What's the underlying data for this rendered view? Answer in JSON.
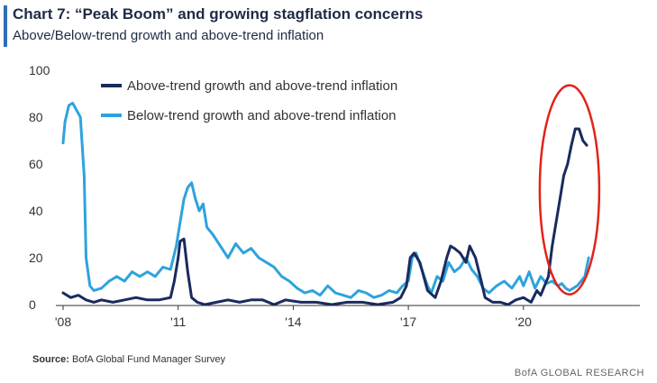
{
  "title": "Chart 7: “Peak Boom” and growing stagflation concerns",
  "subtitle": "Above/Below-trend growth and above-trend inflation",
  "source_label": "Source:",
  "source_text": "BofA Global Fund Manager Survey",
  "footer": "BofA GLOBAL RESEARCH",
  "colors": {
    "title_bar": "#2f6db5",
    "above": "#1a2a5e",
    "below": "#2ea3dc",
    "highlight": "#e2231a",
    "axis": "#333333"
  },
  "chart_data": {
    "type": "line",
    "title": "Chart 7: “Peak Boom” and growing stagflation concerns",
    "subtitle": "Above/Below-trend growth and above-trend inflation",
    "ylim": [
      0,
      100
    ],
    "yticks": [
      "0",
      "20",
      "40",
      "60",
      "80",
      "100"
    ],
    "xlim": [
      2008,
      2022.8
    ],
    "xticks": [
      {
        "x": 2008,
        "label": "'08"
      },
      {
        "x": 2011,
        "label": "'11"
      },
      {
        "x": 2014,
        "label": "'14"
      },
      {
        "x": 2017,
        "label": "'17"
      },
      {
        "x": 2020,
        "label": "'20"
      }
    ],
    "legend": "top-left",
    "series": [
      {
        "name": "Above-trend growth and above-trend inflation",
        "color": "#1a2a5e",
        "x": [
          2008.0,
          2008.2,
          2008.4,
          2008.6,
          2008.8,
          2009.0,
          2009.3,
          2009.6,
          2009.9,
          2010.2,
          2010.5,
          2010.8,
          2010.9,
          2011.0,
          2011.05,
          2011.15,
          2011.25,
          2011.35,
          2011.5,
          2011.7,
          2012.0,
          2012.3,
          2012.6,
          2012.9,
          2013.2,
          2013.5,
          2013.8,
          2014.2,
          2014.6,
          2015.0,
          2015.4,
          2015.8,
          2016.2,
          2016.6,
          2016.8,
          2016.95,
          2017.05,
          2017.15,
          2017.3,
          2017.5,
          2017.7,
          2017.85,
          2018.0,
          2018.1,
          2018.2,
          2018.35,
          2018.5,
          2018.6,
          2018.75,
          2018.9,
          2019.0,
          2019.2,
          2019.4,
          2019.6,
          2019.8,
          2020.0,
          2020.2,
          2020.35,
          2020.45,
          2020.55,
          2020.65,
          2020.75,
          2020.85,
          2020.95,
          2021.05,
          2021.15,
          2021.25,
          2021.35,
          2021.45,
          2021.55,
          2021.65
        ],
        "values": [
          5,
          3,
          4,
          2,
          1,
          2,
          1,
          2,
          3,
          2,
          2,
          3,
          10,
          20,
          27,
          28,
          14,
          3,
          1,
          0,
          1,
          2,
          1,
          2,
          2,
          0,
          2,
          1,
          1,
          0,
          1,
          1,
          0,
          1,
          3,
          8,
          20,
          22,
          18,
          6,
          3,
          10,
          20,
          25,
          24,
          22,
          18,
          25,
          20,
          10,
          3,
          1,
          1,
          0,
          2,
          3,
          1,
          6,
          4,
          8,
          12,
          25,
          35,
          45,
          55,
          60,
          68,
          75,
          75,
          70,
          68
        ]
      },
      {
        "name": "Below-trend growth and above-trend inflation",
        "color": "#2ea3dc",
        "x": [
          2008.0,
          2008.05,
          2008.15,
          2008.25,
          2008.35,
          2008.45,
          2008.55,
          2008.6,
          2008.7,
          2008.8,
          2009.0,
          2009.2,
          2009.4,
          2009.6,
          2009.8,
          2010.0,
          2010.2,
          2010.4,
          2010.6,
          2010.8,
          2010.95,
          2011.05,
          2011.15,
          2011.25,
          2011.35,
          2011.45,
          2011.55,
          2011.65,
          2011.75,
          2011.9,
          2012.1,
          2012.3,
          2012.5,
          2012.7,
          2012.9,
          2013.1,
          2013.3,
          2013.5,
          2013.7,
          2013.9,
          2014.1,
          2014.3,
          2014.5,
          2014.7,
          2014.9,
          2015.1,
          2015.3,
          2015.5,
          2015.7,
          2015.9,
          2016.1,
          2016.3,
          2016.5,
          2016.7,
          2016.85,
          2017.0,
          2017.1,
          2017.2,
          2017.35,
          2017.5,
          2017.6,
          2017.75,
          2017.9,
          2018.05,
          2018.2,
          2018.35,
          2018.5,
          2018.65,
          2018.8,
          2018.95,
          2019.1,
          2019.3,
          2019.5,
          2019.7,
          2019.9,
          2020.0,
          2020.15,
          2020.3,
          2020.45,
          2020.6,
          2020.75,
          2020.9,
          2021.0,
          2021.1,
          2021.2,
          2021.3,
          2021.4,
          2021.5,
          2021.6,
          2021.7
        ],
        "values": [
          69,
          78,
          85,
          86,
          83,
          80,
          55,
          20,
          8,
          6,
          7,
          10,
          12,
          10,
          14,
          12,
          14,
          12,
          16,
          15,
          25,
          35,
          45,
          50,
          52,
          45,
          40,
          43,
          33,
          30,
          25,
          20,
          26,
          22,
          24,
          20,
          18,
          16,
          12,
          10,
          7,
          5,
          6,
          4,
          8,
          5,
          4,
          3,
          6,
          5,
          3,
          4,
          6,
          5,
          8,
          10,
          20,
          22,
          15,
          8,
          5,
          12,
          10,
          18,
          14,
          16,
          20,
          15,
          12,
          7,
          5,
          8,
          10,
          7,
          12,
          8,
          14,
          7,
          12,
          9,
          10,
          8,
          9,
          7,
          6,
          7,
          8,
          10,
          12,
          20
        ]
      }
    ]
  }
}
